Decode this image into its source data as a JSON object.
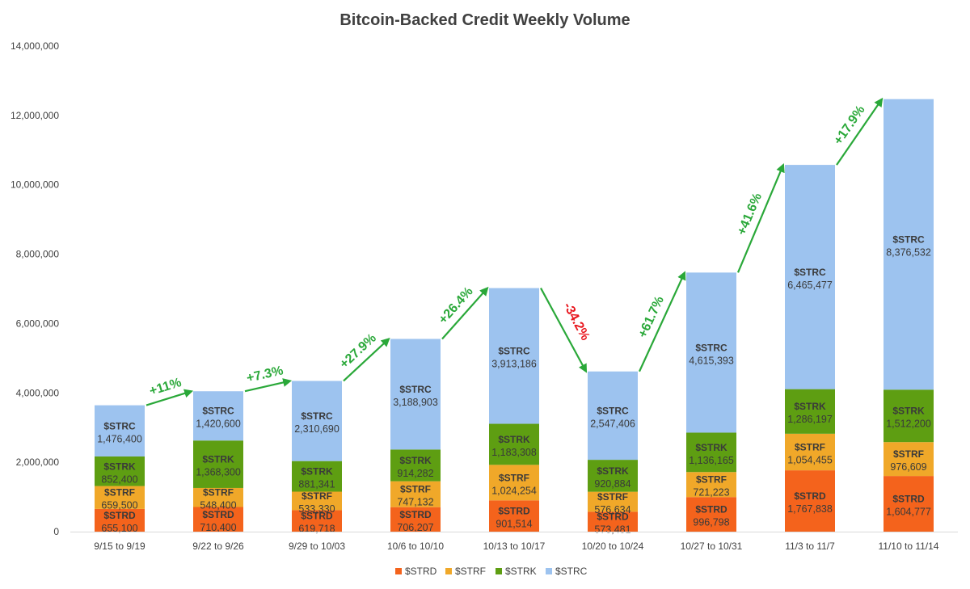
{
  "chart_data": {
    "type": "bar",
    "stacked": true,
    "title": "Bitcoin-Backed Credit Weekly Volume",
    "categories": [
      "9/15 to 9/19",
      "9/22 to 9/26",
      "9/29 to 10/03",
      "10/6 to 10/10",
      "10/13 to 10/17",
      "10/20 to 10/24",
      "10/27 to 10/31",
      "11/3 to 11/7",
      "11/10  to 11/14"
    ],
    "ylim": [
      0,
      14000000
    ],
    "yticks": [
      0,
      2000000,
      4000000,
      6000000,
      8000000,
      10000000,
      12000000,
      14000000
    ],
    "ytick_labels": [
      "0",
      "2,000,000",
      "4,000,000",
      "6,000,000",
      "8,000,000",
      "10,000,000",
      "12,000,000",
      "14,000,000"
    ],
    "grid": false,
    "legend_position": "bottom",
    "series": [
      {
        "name": "$STRD",
        "color": "#f4631c",
        "values": [
          655100,
          710400,
          619718,
          706207,
          901514,
          573481,
          996798,
          1767838,
          1604777
        ],
        "labels": [
          "655,100",
          "710,400",
          "619,718",
          "706,207",
          "901,514",
          "573,481",
          "996,798",
          "1,767,838",
          "1,604,777"
        ]
      },
      {
        "name": "$STRF",
        "color": "#f0a829",
        "values": [
          659500,
          548400,
          533330,
          747132,
          1024254,
          576634,
          721223,
          1054455,
          976609
        ],
        "labels": [
          "659,500",
          "548,400",
          "533,330",
          "747,132",
          "1,024,254",
          "576,634",
          "721,223",
          "1,054,455",
          "976,609"
        ]
      },
      {
        "name": "$STRK",
        "color": "#5e9e12",
        "values": [
          852400,
          1368300,
          881341,
          914282,
          1183308,
          920884,
          1136165,
          1286197,
          1512200
        ],
        "labels": [
          "852,400",
          "1,368,300",
          "881,341",
          "914,282",
          "1,183,308",
          "920,884",
          "1,136,165",
          "1,286,197",
          "1,512,200"
        ]
      },
      {
        "name": "$STRC",
        "color": "#9dc3ef",
        "values": [
          1476400,
          1420600,
          2310690,
          3188903,
          3913186,
          2547406,
          4615393,
          6465477,
          8376532
        ],
        "labels": [
          "1,476,400",
          "1,420,600",
          "2,310,690",
          "3,188,903",
          "3,913,186",
          "2,547,406",
          "4,615,393",
          "6,465,477",
          "8,376,532"
        ]
      }
    ],
    "annotations": [
      {
        "from": 0,
        "to": 1,
        "text": "+11%",
        "color": "#2aa839"
      },
      {
        "from": 1,
        "to": 2,
        "text": "+7.3%",
        "color": "#2aa839"
      },
      {
        "from": 2,
        "to": 3,
        "text": "+27.9%",
        "color": "#2aa839"
      },
      {
        "from": 3,
        "to": 4,
        "text": "+26.4%",
        "color": "#2aa839"
      },
      {
        "from": 4,
        "to": 5,
        "text": "-34.2%",
        "color": "#e8141c"
      },
      {
        "from": 5,
        "to": 6,
        "text": "+61.7%",
        "color": "#2aa839"
      },
      {
        "from": 6,
        "to": 7,
        "text": "+41.6%",
        "color": "#2aa839"
      },
      {
        "from": 7,
        "to": 8,
        "text": "+17.9%",
        "color": "#2aa839"
      }
    ]
  }
}
